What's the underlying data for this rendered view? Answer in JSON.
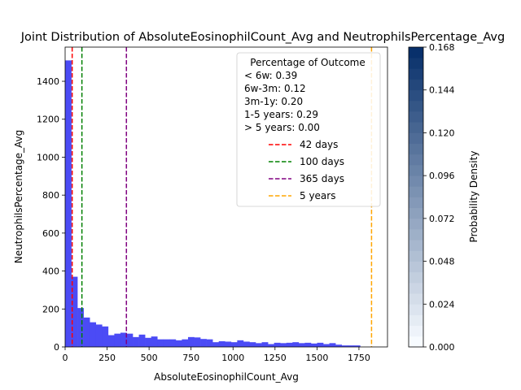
{
  "chart_data": {
    "type": "bar",
    "title": "Joint Distribution of AbsoluteEosinophilCount_Avg and NeutrophilsPercentage_Avg",
    "xlabel": "AbsoluteEosinophilCount_Avg",
    "ylabel": "NeutrophilsPercentage_Avg",
    "xlim": [
      0,
      1920
    ],
    "ylim": [
      0,
      1580
    ],
    "xticks": [
      0,
      250,
      500,
      750,
      1000,
      1250,
      1500,
      1750
    ],
    "yticks": [
      0,
      200,
      400,
      600,
      800,
      1000,
      1200,
      1400
    ],
    "bar_color": "#4b4bf5",
    "bin_width": 36.6,
    "bins_start": [
      0,
      36.6,
      73.2,
      109.8,
      146.4,
      183,
      219.6,
      256.2,
      292.8,
      329.4,
      366,
      402.6,
      439.2,
      475.8,
      512.4,
      549,
      585.6,
      622.2,
      658.8,
      695.4,
      732,
      768.6,
      805.2,
      841.8,
      878.4,
      915,
      951.6,
      988.2,
      1024.8,
      1061.4,
      1098,
      1134.6,
      1171.2,
      1207.8,
      1244.4,
      1281,
      1317.6,
      1354.2,
      1390.8,
      1427.4,
      1464,
      1500.6,
      1537.2,
      1573.8,
      1610.4,
      1647,
      1683.6,
      1720.2,
      1756.8,
      1793.4
    ],
    "values": [
      1510,
      370,
      205,
      155,
      130,
      118,
      108,
      62,
      70,
      75,
      70,
      52,
      65,
      48,
      55,
      40,
      40,
      40,
      35,
      40,
      52,
      50,
      42,
      40,
      25,
      30,
      28,
      25,
      35,
      28,
      25,
      20,
      25,
      15,
      22,
      20,
      22,
      25,
      20,
      22,
      18,
      22,
      15,
      20,
      12,
      8,
      8,
      8,
      0,
      0
    ],
    "vlines": [
      {
        "x": 42,
        "color": "#ff0000",
        "label": "42 days"
      },
      {
        "x": 100,
        "color": "#008000",
        "label": "100 days"
      },
      {
        "x": 365,
        "color": "#800080",
        "label": "365 days"
      },
      {
        "x": 1825,
        "color": "#ffa500",
        "label": "5 years"
      }
    ],
    "legend": {
      "placement": "top-right",
      "title": "Percentage of Outcome",
      "stats": [
        "< 6w: 0.39",
        "6w-3m: 0.12",
        "3m-1y: 0.20",
        "1-5 years: 0.29",
        "> 5 years: 0.00"
      ]
    },
    "colorbar": {
      "label": "Probability Density",
      "min": 0,
      "max": 0.168,
      "ticks": [
        "0.000",
        "0.024",
        "0.048",
        "0.072",
        "0.096",
        "0.120",
        "0.144",
        "0.168"
      ],
      "levels": 28,
      "color_low": "#f7fbff",
      "color_high": "#08306b"
    }
  }
}
